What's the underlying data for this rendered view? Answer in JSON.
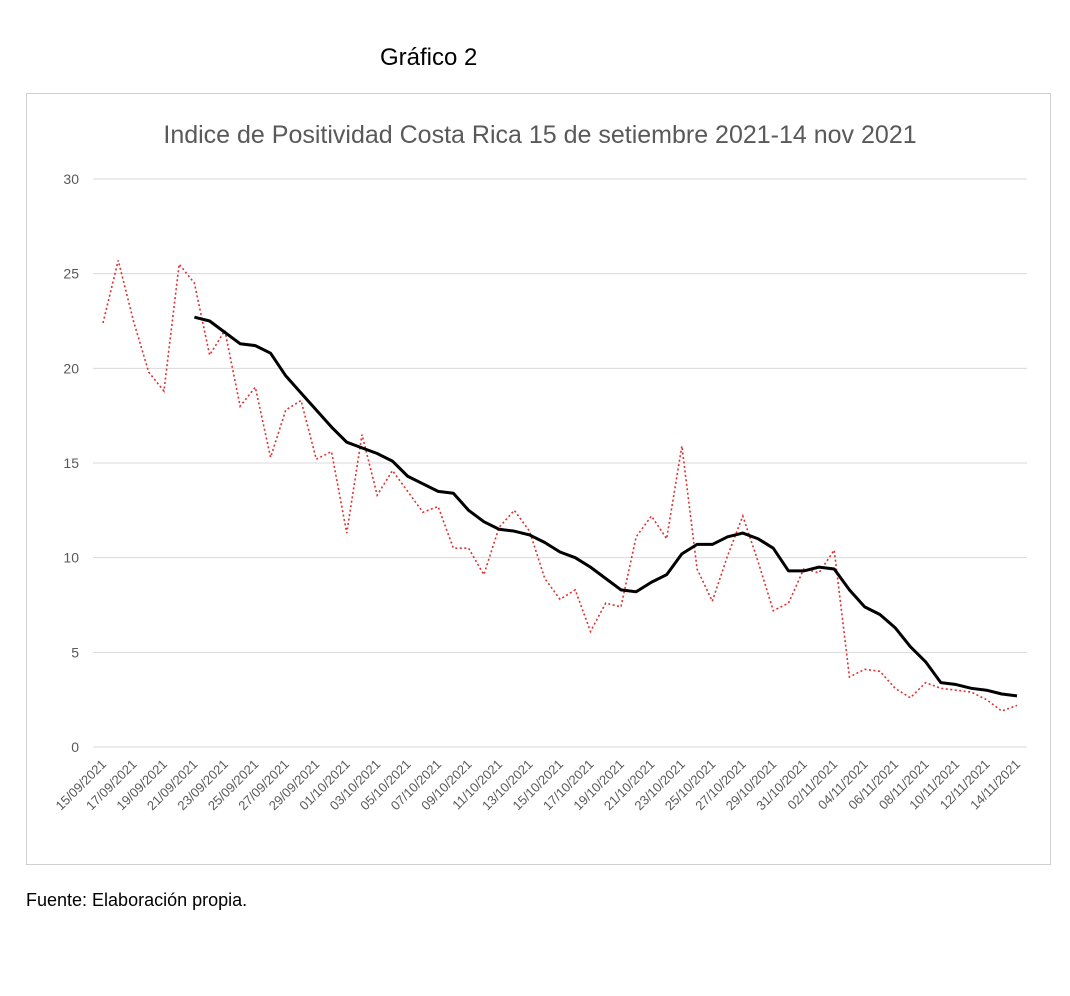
{
  "figure_title": "Gráfico 2",
  "source_note": "Fuente: Elaboración propia.",
  "chart_data": {
    "type": "line",
    "title": "Indice de Positividad Costa Rica 15 de setiembre 2021-14 nov 2021",
    "xlabel": "",
    "ylabel": "",
    "ylim": [
      0,
      30
    ],
    "yticks": [
      0,
      5,
      10,
      15,
      20,
      25,
      30
    ],
    "grid": true,
    "legend": "none",
    "x": [
      "15/09/2021",
      "16/09/2021",
      "17/09/2021",
      "18/09/2021",
      "19/09/2021",
      "20/09/2021",
      "21/09/2021",
      "22/09/2021",
      "23/09/2021",
      "24/09/2021",
      "25/09/2021",
      "26/09/2021",
      "27/09/2021",
      "28/09/2021",
      "29/09/2021",
      "30/09/2021",
      "01/10/2021",
      "02/10/2021",
      "03/10/2021",
      "04/10/2021",
      "05/10/2021",
      "06/10/2021",
      "07/10/2021",
      "08/10/2021",
      "09/10/2021",
      "10/10/2021",
      "11/10/2021",
      "12/10/2021",
      "13/10/2021",
      "14/10/2021",
      "15/10/2021",
      "16/10/2021",
      "17/10/2021",
      "18/10/2021",
      "19/10/2021",
      "20/10/2021",
      "21/10/2021",
      "22/10/2021",
      "23/10/2021",
      "24/10/2021",
      "25/10/2021",
      "26/10/2021",
      "27/10/2021",
      "28/10/2021",
      "29/10/2021",
      "30/10/2021",
      "31/10/2021",
      "01/11/2021",
      "02/11/2021",
      "03/11/2021",
      "04/11/2021",
      "05/11/2021",
      "06/11/2021",
      "07/11/2021",
      "08/11/2021",
      "09/11/2021",
      "10/11/2021",
      "11/11/2021",
      "12/11/2021",
      "13/11/2021",
      "14/11/2021"
    ],
    "tick_labels": [
      "15/09/2021",
      "17/09/2021",
      "19/09/2021",
      "21/09/2021",
      "23/09/2021",
      "25/09/2021",
      "27/09/2021",
      "29/09/2021",
      "01/10/2021",
      "03/10/2021",
      "05/10/2021",
      "07/10/2021",
      "09/10/2021",
      "11/10/2021",
      "13/10/2021",
      "15/10/2021",
      "17/10/2021",
      "19/10/2021",
      "21/10/2021",
      "23/10/2021",
      "25/10/2021",
      "27/10/2021",
      "29/10/2021",
      "31/10/2021",
      "02/11/2021",
      "04/11/2021",
      "06/11/2021",
      "08/11/2021",
      "10/11/2021",
      "12/11/2021",
      "14/11/2021"
    ],
    "series": [
      {
        "style": "dotted",
        "color": "#e03030",
        "values": [
          22.4,
          25.7,
          22.5,
          19.8,
          18.8,
          25.5,
          24.5,
          20.7,
          22.0,
          18.0,
          19.0,
          15.3,
          17.8,
          18.3,
          15.2,
          15.6,
          11.3,
          16.5,
          13.3,
          14.6,
          13.5,
          12.4,
          12.7,
          10.5,
          10.5,
          9.1,
          11.6,
          12.5,
          11.4,
          8.9,
          7.8,
          8.3,
          6.1,
          7.6,
          7.4,
          11.1,
          12.2,
          11.0,
          15.9,
          9.4,
          7.7,
          10.1,
          12.2,
          9.8,
          7.2,
          7.6,
          9.4,
          9.2,
          10.4,
          3.7,
          4.1,
          4.0,
          3.1,
          2.6,
          3.4,
          3.1,
          3.0,
          2.9,
          2.5,
          1.9,
          2.2
        ]
      },
      {
        "style": "solid",
        "color": "#000000",
        "values": [
          null,
          null,
          null,
          null,
          null,
          null,
          22.7,
          22.5,
          21.9,
          21.3,
          21.2,
          20.8,
          19.6,
          18.7,
          17.8,
          16.9,
          16.1,
          15.8,
          15.5,
          15.1,
          14.3,
          13.9,
          13.5,
          13.4,
          12.5,
          11.9,
          11.5,
          11.4,
          11.2,
          10.8,
          10.3,
          10.0,
          9.5,
          8.9,
          8.3,
          8.2,
          8.7,
          9.1,
          10.2,
          10.7,
          10.7,
          11.1,
          11.3,
          11.0,
          10.5,
          9.3,
          9.3,
          9.5,
          9.4,
          8.3,
          7.4,
          7.0,
          6.3,
          5.3,
          4.5,
          3.4,
          3.3,
          3.1,
          3.0,
          2.8,
          2.7
        ]
      }
    ]
  }
}
